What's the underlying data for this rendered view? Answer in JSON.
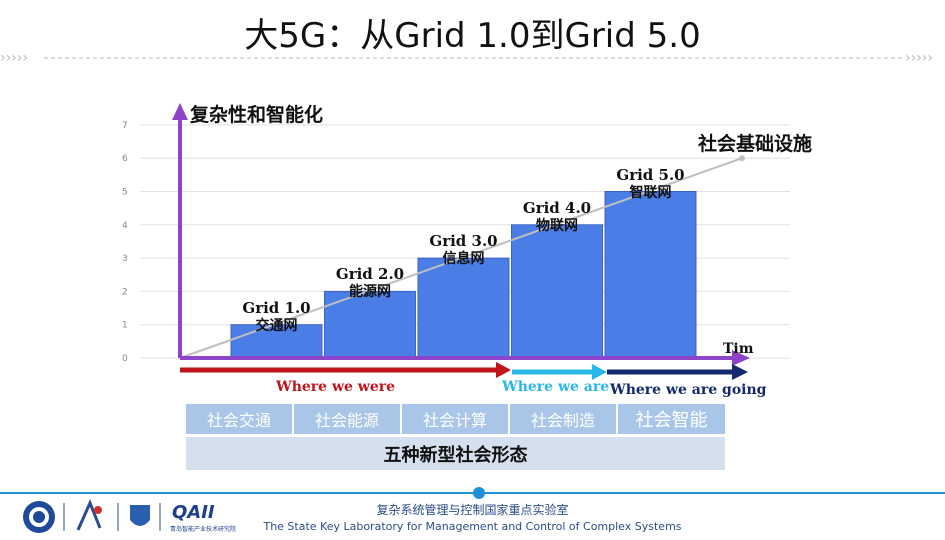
{
  "title": "大5G：从Grid 1.0到Grid 5.0",
  "chart_data": {
    "type": "bar",
    "ylabel": "复杂性和智能化",
    "xlabel": "Tim",
    "yticks": [
      "0",
      "1",
      "2",
      "3",
      "4",
      "5",
      "6",
      "7"
    ],
    "ylim": [
      0,
      7
    ],
    "grid": true,
    "categories": [
      "Grid 1.0\n交通网",
      "Grid 2.0\n能源网",
      "Grid 3.0\n信息网",
      "Grid 4.0\n物联网",
      "Grid 5.0\n智联网"
    ],
    "values": [
      1,
      2,
      3,
      4,
      5
    ],
    "bars": [
      {
        "name": "Grid 1.0",
        "sub": "交通网",
        "value": 1
      },
      {
        "name": "Grid 2.0",
        "sub": "能源网",
        "value": 2
      },
      {
        "name": "Grid 3.0",
        "sub": "信息网",
        "value": 3
      },
      {
        "name": "Grid 4.0",
        "sub": "物联网",
        "value": 4
      },
      {
        "name": "Grid 5.0",
        "sub": "智联网",
        "value": 5
      }
    ],
    "trend_label": "社会基础设施",
    "trend_line": {
      "from": 0,
      "to": 6
    }
  },
  "phases": {
    "were": "Where we were",
    "are": "Where we are",
    "going": "Where we are going"
  },
  "forms": [
    "社会交通",
    "社会能源",
    "社会计算",
    "社会制造",
    "社会智能"
  ],
  "caption": "五种新型社会形态",
  "footer": {
    "cn": "复杂系统管理与控制国家重点实验室",
    "en": "The State Key Laboratory for Management and Control of Complex Systems",
    "qaii": "QAII",
    "qaii_sub": "青岛智能产业技术研究院"
  },
  "colors": {
    "bar": "#4a7de6",
    "bar_edge": "#3a64c8",
    "axis": "#8e44c8",
    "were": "#c0141c",
    "are": "#29b7e8",
    "going": "#14286e",
    "footer": "#1d8fd6"
  }
}
